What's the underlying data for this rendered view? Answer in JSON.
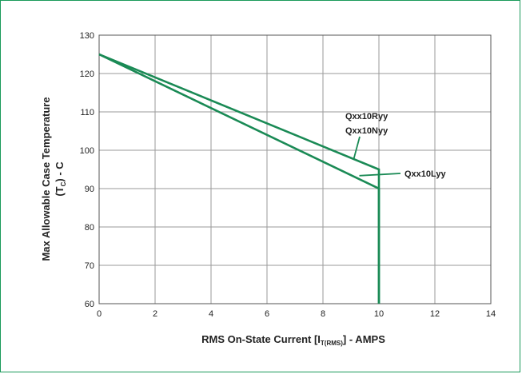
{
  "chart_data": {
    "type": "line",
    "title": "",
    "xlabel": "RMS On-State Current [I",
    "xlabel_sub": "T(RMS)",
    "xlabel_suffix": "] - AMPS",
    "ylabel_line1": "Max Allowable Case Temperature",
    "ylabel_line2_pre": "(T",
    "ylabel_line2_sub": "C",
    "ylabel_line2_post": ") - C",
    "xlim": [
      0,
      14
    ],
    "ylim": [
      60,
      130
    ],
    "xticks": [
      0,
      2,
      4,
      6,
      8,
      10,
      12,
      14
    ],
    "yticks": [
      60,
      70,
      80,
      90,
      100,
      110,
      120,
      130
    ],
    "grid": true,
    "line_color": "#1a8a55",
    "series": [
      {
        "name": "Qxx10Ryy / Qxx10Nyy",
        "points": [
          [
            0,
            125
          ],
          [
            10,
            95
          ],
          [
            10,
            60
          ]
        ]
      },
      {
        "name": "Qxx10Lyy",
        "points": [
          [
            0,
            125
          ],
          [
            10,
            90
          ],
          [
            10,
            60
          ]
        ]
      }
    ],
    "annotations": [
      {
        "text": "Qxx10Ryy",
        "target": [
          9.1,
          97.7
        ]
      },
      {
        "text": "Qxx10Nyy",
        "target": [
          9.1,
          97.7
        ]
      },
      {
        "text": "Qxx10Lyy",
        "target": [
          9.3,
          94
        ]
      }
    ]
  }
}
